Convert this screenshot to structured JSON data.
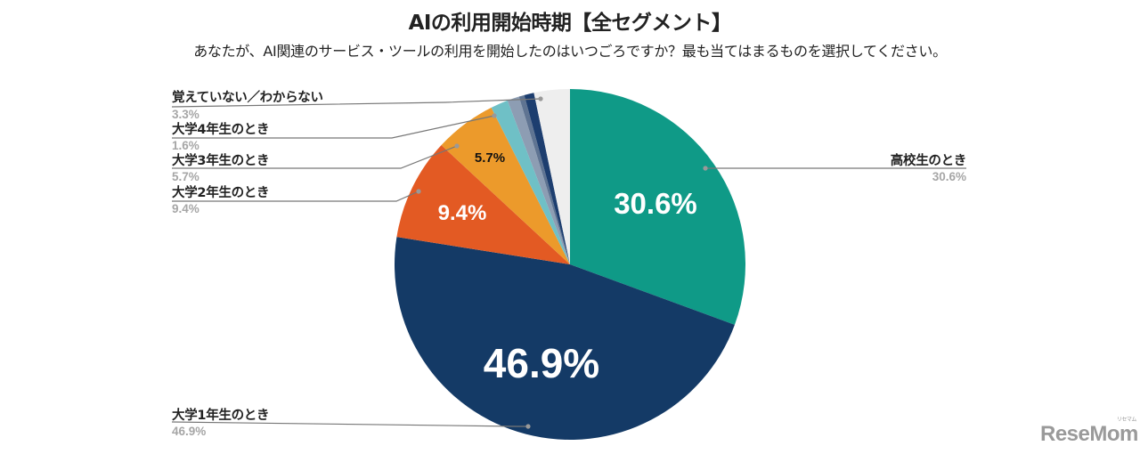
{
  "header": {
    "title": "AIの利用開始時期【全セグメント】",
    "subtitle": "あなたが、AI関連のサービス・ツールの利用を開始したのはいつごろですか？最も当てはまるものを選択してください。"
  },
  "labels": {
    "koko": {
      "name": "高校生のとき",
      "pct": "30.6%",
      "inner": "30.6%"
    },
    "dai1": {
      "name": "大学1年生のとき",
      "pct": "46.9%",
      "inner": "46.9%"
    },
    "dai2": {
      "name": "大学2年生のとき",
      "pct": "9.4%",
      "inner": "9.4%"
    },
    "dai3": {
      "name": "大学3年生のとき",
      "pct": "5.7%",
      "inner": "5.7%"
    },
    "dai4": {
      "name": "大学4年生のとき",
      "pct": "1.6%"
    },
    "unknown": {
      "name": "覚えていない／わからない",
      "pct": "3.3%"
    }
  },
  "logo": {
    "text": "ReseMom",
    "ruby": "リセマム"
  },
  "chart_data": {
    "type": "pie",
    "title": "AIの利用開始時期【全セグメント】",
    "subtitle": "あなたが、AI関連のサービス・ツールの利用を開始したのはいつごろですか？最も当てはまるものを選択してください。",
    "start_angle": "12 o'clock, clockwise",
    "slices": [
      {
        "label": "高校生のとき",
        "value": 30.6,
        "color": "#0f9a87"
      },
      {
        "label": "大学1年生のとき",
        "value": 46.9,
        "color": "#143a66"
      },
      {
        "label": "大学2年生のとき",
        "value": 9.4,
        "color": "#e35a23"
      },
      {
        "label": "大学3年生のとき",
        "value": 5.7,
        "color": "#ec9a2b"
      },
      {
        "label": "大学4年生のとき",
        "value": 1.6,
        "color": "#6fc0c6"
      },
      {
        "label": "(unlabeled)",
        "value": 1.1,
        "color": "#8d9db3"
      },
      {
        "label": "(unlabeled)",
        "value": 0.5,
        "color": "#5f7492"
      },
      {
        "label": "(unlabeled)",
        "value": 0.9,
        "color": "#1d3e6f"
      },
      {
        "label": "覚えていない／わからない",
        "value": 3.3,
        "color": "#eeeeee"
      }
    ],
    "legend_position": "callout labels"
  }
}
